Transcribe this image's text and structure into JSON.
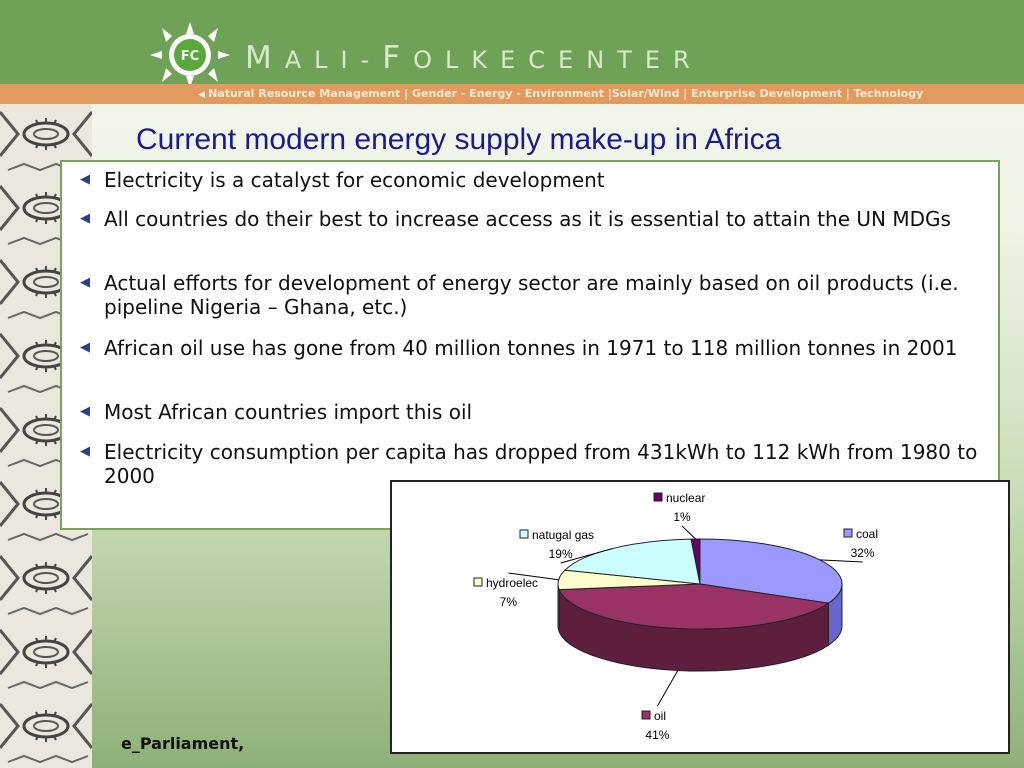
{
  "header": {
    "brand_first": "M",
    "brand_rest1": "ALI-",
    "brand_second": "F",
    "brand_rest2": "OLKECENTER",
    "logo_text": "FC",
    "tagline": "Natural Resource Management | Gender - Energy - Environment |Solar/Wind | Enterprise Development | Technology"
  },
  "slide": {
    "title": "Current modern energy supply make-up in Africa",
    "bullets": [
      "Electricity is a catalyst for economic development",
      "All countries do their best to increase access as it is essential to attain the UN MDGs",
      "Actual efforts for development of energy sector are mainly based on oil products (i.e. pipeline Nigeria – Ghana, etc.)",
      "African oil use has gone from 40 million tonnes in 1971 to 118 million tonnes in 2001",
      "Most African countries import this oil",
      "Electricity consumption per capita has dropped from 431kWh to 112 kWh from 1980 to 2000"
    ],
    "footer": "e_Parliament,"
  },
  "colors": {
    "header_green": "#6fa156",
    "tag_orange": "#e39a5e",
    "title_blue": "#1a1a8c"
  },
  "chart_data": {
    "type": "pie",
    "three_d": true,
    "slices": [
      {
        "label": "coal",
        "value": 32,
        "value_label": "32%",
        "color": "#9999ff",
        "side": "#6666cc"
      },
      {
        "label": "oil",
        "value": 41,
        "value_label": "41%",
        "color": "#993366",
        "side": "#5e1f3f"
      },
      {
        "label": "hydroelec",
        "value": 7,
        "value_label": "7%",
        "color": "#ffffcc",
        "side": "#c8c89a"
      },
      {
        "label": "natugal gas",
        "value": 19,
        "value_label": "19%",
        "color": "#ccffff",
        "side": "#9ccccc"
      },
      {
        "label": "nuclear",
        "value": 1,
        "value_label": "1%",
        "color": "#660066",
        "side": "#400040"
      }
    ]
  }
}
